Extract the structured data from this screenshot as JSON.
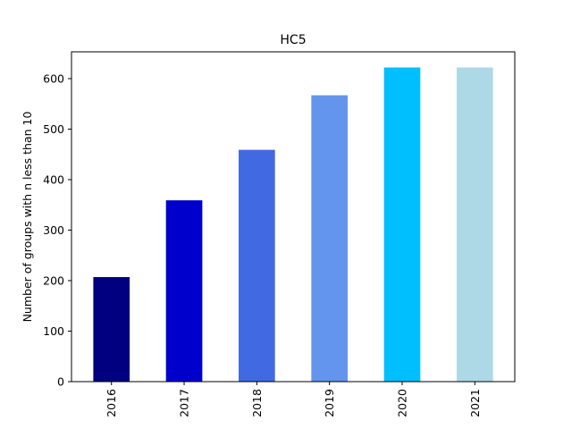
{
  "chart_data": {
    "type": "bar",
    "title": "HC5",
    "xlabel": "",
    "ylabel": "Number of groups with n less than 10",
    "categories": [
      "2016",
      "2017",
      "2018",
      "2019",
      "2020",
      "2021"
    ],
    "values": [
      207,
      359,
      459,
      567,
      622,
      622
    ],
    "colors": [
      "#000080",
      "#0000cd",
      "#4169e1",
      "#6495ed",
      "#00bfff",
      "#add8e6"
    ],
    "ylim": [
      0,
      653
    ],
    "yticks": [
      0,
      100,
      200,
      300,
      400,
      500,
      600
    ],
    "grid": false,
    "legend": "none"
  }
}
